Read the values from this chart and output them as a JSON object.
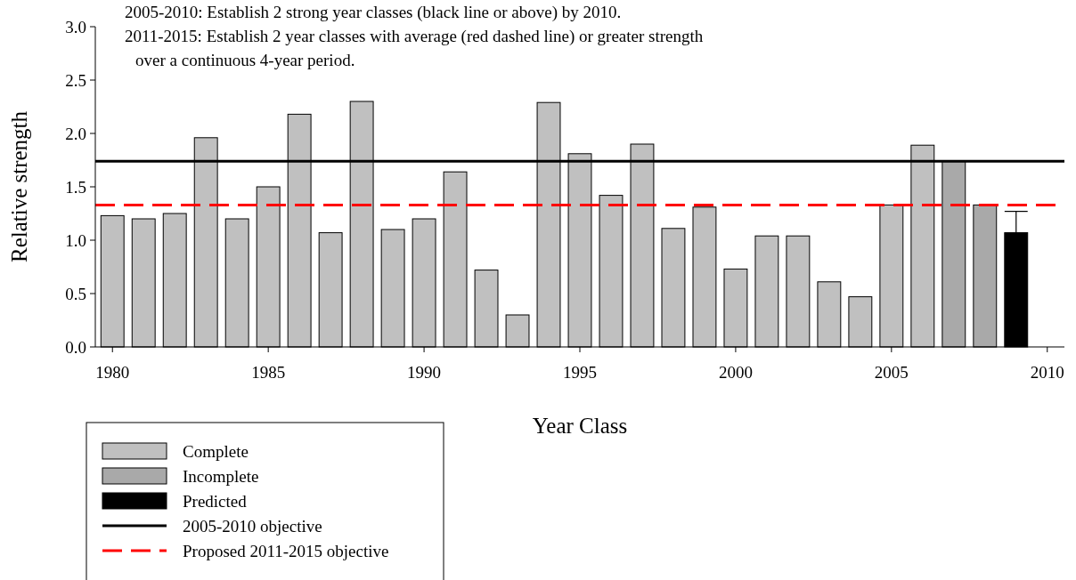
{
  "chart_data": {
    "type": "bar",
    "xlabel": "Year Class",
    "ylabel": "Relative strength",
    "xlim": [
      1979.45,
      2010.55
    ],
    "xticks": [
      1980,
      1985,
      1990,
      1995,
      2000,
      2005,
      2010
    ],
    "ylim": [
      0,
      3
    ],
    "yticks": [
      {
        "value": 0,
        "label": "0.0"
      },
      {
        "value": 0.5,
        "label": "0.5"
      },
      {
        "value": 1,
        "label": "1.0"
      },
      {
        "value": 1.5,
        "label": "1.5"
      },
      {
        "value": 2,
        "label": "2.0"
      },
      {
        "value": 2.5,
        "label": "2.5"
      },
      {
        "value": 3,
        "label": "3.0"
      }
    ],
    "series": [
      {
        "name": "Complete",
        "color": "#c0c0c0",
        "x": [
          1980,
          1981,
          1982,
          1983,
          1984,
          1985,
          1986,
          1987,
          1988,
          1989,
          1990,
          1991,
          1992,
          1993,
          1994,
          1995,
          1996,
          1997,
          1998,
          1999,
          2000,
          2001,
          2002,
          2003,
          2004,
          2005,
          2006
        ],
        "values": [
          1.23,
          1.2,
          1.25,
          1.96,
          1.2,
          1.5,
          2.18,
          1.07,
          2.3,
          1.1,
          1.2,
          1.64,
          0.72,
          0.3,
          2.29,
          1.81,
          1.42,
          1.9,
          1.11,
          1.31,
          0.73,
          1.04,
          1.04,
          0.61,
          0.47,
          1.33,
          1.89
        ]
      },
      {
        "name": "Incomplete",
        "color": "#a9a9a9",
        "x": [
          2007,
          2008
        ],
        "values": [
          1.74,
          1.33
        ]
      },
      {
        "name": "Predicted",
        "color": "#000000",
        "x": [
          2009
        ],
        "values": [
          1.07
        ],
        "errors": [
          [
            1.07,
            1.27
          ]
        ]
      }
    ],
    "ref_lines": [
      {
        "axis": "y",
        "value": 1.74,
        "label": "2005-2010 objective",
        "color": "#000000",
        "line_style": "solid"
      },
      {
        "axis": "y",
        "value": 1.33,
        "label": "Proposed 2011-2015 objective",
        "color": "#ff0000",
        "line_style": "dashed"
      }
    ],
    "annotations": [
      "2005-2010: Establish 2 strong year classes (black line or above) by 2010.",
      "2011-2015: Establish 2 year classes with average (red dashed line) or greater strength over a continuous 4-year period."
    ],
    "legend": "bottom left",
    "grid": false
  }
}
